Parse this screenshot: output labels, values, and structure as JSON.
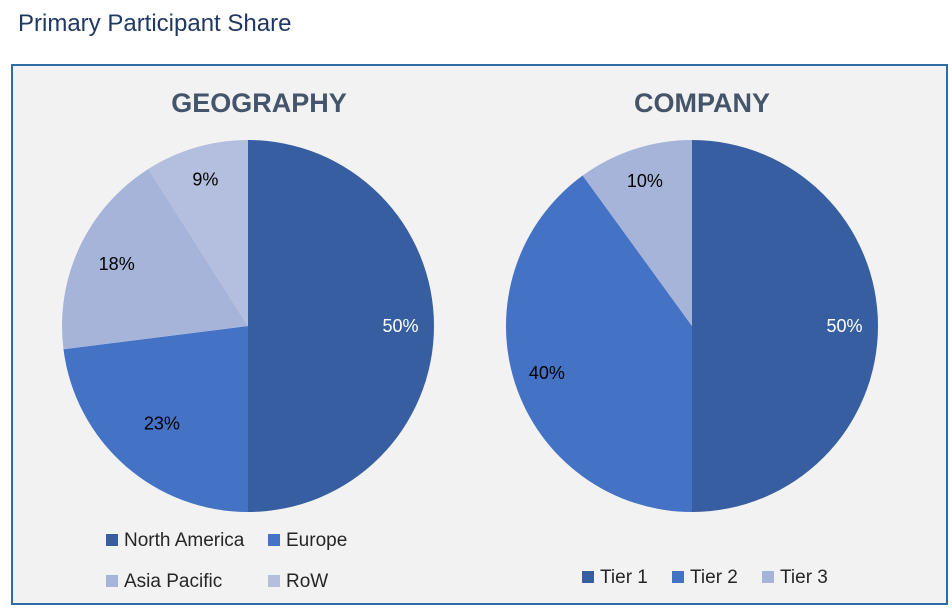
{
  "page": {
    "title": "Primary Participant Share"
  },
  "colors": {
    "dark_blue": "#365ea0",
    "mid_blue": "#4472c4",
    "light_blue": "#a6b4d9",
    "lighter_blue": "#b4bfe0",
    "frame_border": "#2e6da4",
    "frame_bg": "#f2f2f2"
  },
  "chart_data": [
    {
      "type": "pie",
      "title": "GEOGRAPHY",
      "categories": [
        "North America",
        "Europe",
        "Asia Pacific",
        "RoW"
      ],
      "values": [
        50,
        23,
        18,
        9
      ],
      "labels": [
        "50%",
        "23%",
        "18%",
        "9%"
      ],
      "colors": [
        "#365ea0",
        "#4472c4",
        "#a6b4d9",
        "#b4bfe0"
      ],
      "label_colors": [
        "#ffffff",
        "#000000",
        "#000000",
        "#000000"
      ],
      "start": "12 o'clock",
      "direction": "clockwise",
      "legend": "bottom"
    },
    {
      "type": "pie",
      "title": "COMPANY",
      "categories": [
        "Tier 1",
        "Tier 2",
        "Tier 3"
      ],
      "values": [
        50,
        40,
        10
      ],
      "labels": [
        "50%",
        "40%",
        "10%"
      ],
      "colors": [
        "#365ea0",
        "#4472c4",
        "#a6b4d9"
      ],
      "label_colors": [
        "#ffffff",
        "#000000",
        "#000000"
      ],
      "start": "12 o'clock",
      "direction": "clockwise",
      "legend": "bottom"
    }
  ]
}
